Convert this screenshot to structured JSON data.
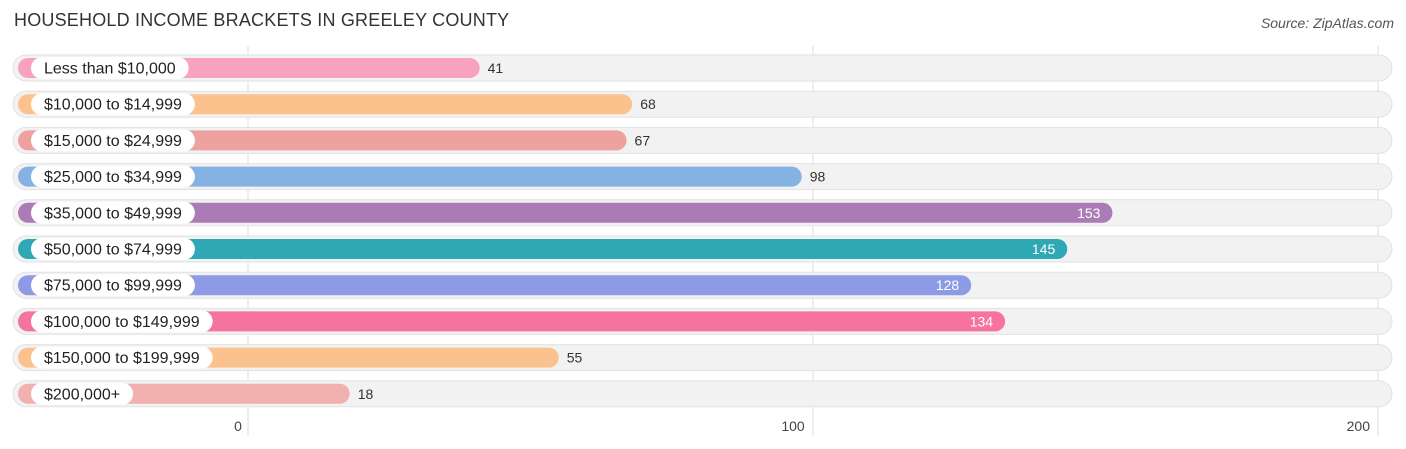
{
  "header": {
    "title": "HOUSEHOLD INCOME BRACKETS IN GREELEY COUNTY",
    "source": "Source: ZipAtlas.com"
  },
  "chart_data": {
    "type": "bar",
    "orientation": "horizontal",
    "title": "HOUSEHOLD INCOME BRACKETS IN GREELEY COUNTY",
    "xlabel": "",
    "ylabel": "",
    "xlim": [
      0,
      200
    ],
    "ticks": [
      0,
      100,
      200
    ],
    "grid": true,
    "categories": [
      "Less than $10,000",
      "$10,000 to $14,999",
      "$15,000 to $24,999",
      "$25,000 to $34,999",
      "$35,000 to $49,999",
      "$50,000 to $74,999",
      "$75,000 to $99,999",
      "$100,000 to $149,999",
      "$150,000 to $199,999",
      "$200,000+"
    ],
    "values": [
      41,
      68,
      67,
      98,
      153,
      145,
      128,
      134,
      55,
      18
    ],
    "colors": [
      "#f7a3c0",
      "#fbc28e",
      "#eea29f",
      "#84b2e3",
      "#ab7bb6",
      "#2fa8b5",
      "#8d9ae6",
      "#f5739c",
      "#fbc28e",
      "#f2b0ae"
    ]
  }
}
